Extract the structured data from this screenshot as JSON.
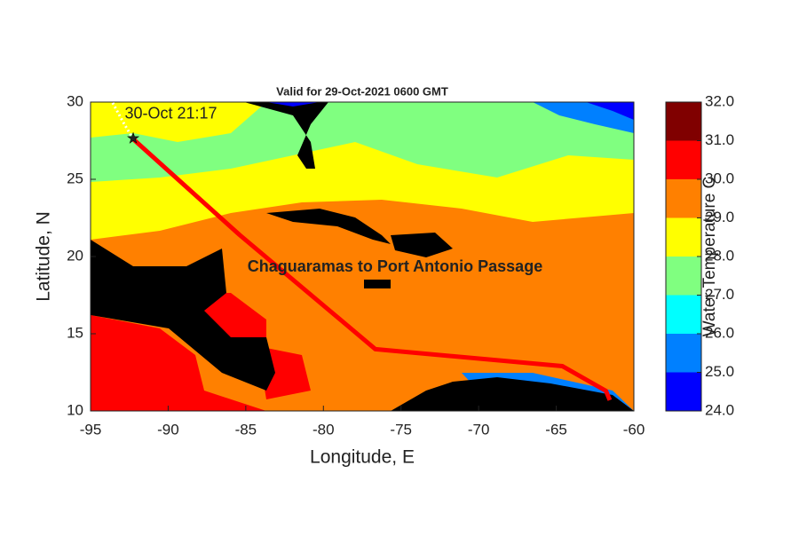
{
  "chart_data": {
    "type": "route-map",
    "title": "Valid for 29-Oct-2021 0600 GMT",
    "xlabel": "Longitude, E",
    "ylabel": "Latitude, N",
    "xlim": [
      -95,
      -60
    ],
    "ylim": [
      10,
      30
    ],
    "xticks": [
      -95,
      -90,
      -85,
      -80,
      -75,
      -70,
      -65,
      -60
    ],
    "yticks": [
      10,
      15,
      20,
      25,
      30
    ],
    "colorbar": {
      "label": "Water Temperature C",
      "lim": [
        24,
        32
      ],
      "colors": [
        "#0000ff",
        "#0080ff",
        "#00ffff",
        "#80ff80",
        "#ffff00",
        "#ff8000",
        "#ff0000",
        "#800000"
      ],
      "ticks": [
        {
          "value": 24,
          "label": "24.0"
        },
        {
          "value": 25,
          "label": "25.0"
        },
        {
          "value": 26,
          "label": "26.0"
        },
        {
          "value": 27,
          "label": "27.0"
        },
        {
          "value": 28,
          "label": "28.0"
        },
        {
          "value": 29,
          "label": "29.0"
        },
        {
          "value": 30,
          "label": "30.0"
        },
        {
          "value": 31,
          "label": "31.0"
        },
        {
          "value": 32,
          "label": "32.0"
        }
      ]
    },
    "route": {
      "name": "Chaguaramas to Port Antonio Passage",
      "color": "#ff0000",
      "x": [
        -92.25,
        -85.4,
        -76.65,
        -64.6,
        -61.8,
        -61.55
      ],
      "y": [
        27.6,
        21.4,
        14.0,
        12.9,
        11.3,
        10.7
      ]
    },
    "forecast_track": {
      "color": "#ffffff",
      "x": [
        -92.25,
        -92.9,
        -93.6
      ],
      "y": [
        27.6,
        28.7,
        30
      ]
    },
    "annotation": {
      "text": "30-Oct 21:17",
      "x": -92.8,
      "y": 29.2
    }
  }
}
